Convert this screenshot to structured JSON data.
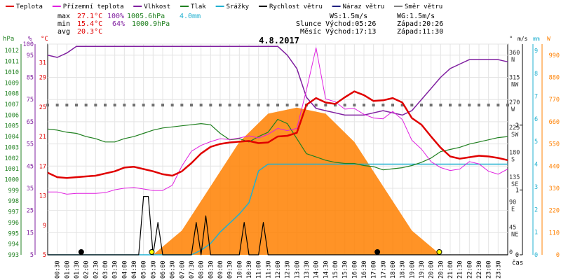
{
  "legend": [
    {
      "label": "Teplota",
      "color": "#e00000"
    },
    {
      "label": "Přízemní teplota",
      "color": "#e020e0"
    },
    {
      "label": "Vlhkost",
      "color": "#8020a0"
    },
    {
      "label": "Tlak",
      "color": "#208020"
    },
    {
      "label": "Srážky",
      "color": "#20b0d0"
    },
    {
      "label": "Rychlost větru",
      "color": "#000000"
    },
    {
      "label": "Náraz větru",
      "color": "#202080"
    },
    {
      "label": "Směr větru",
      "color": "#808080"
    }
  ],
  "stats": {
    "max": {
      "label": "max",
      "temp": "27.1°C",
      "hum": "100%",
      "press": "1005.6hPa",
      "rain": "4.0mm"
    },
    "min": {
      "label": "min",
      "temp": "15.4°C",
      "hum": "64%",
      "press": "1000.9hPa"
    },
    "avg": {
      "label": "avg",
      "temp": "20.3°C"
    }
  },
  "wind_info": {
    "ws": "WS:1.5m/s",
    "wg": "WG:1.5m/s",
    "sun": "Slunce Východ:05:26",
    "sun_set": "Západ:20:26",
    "moon": "Měsíc  Východ:17:13",
    "moon_set": "Západ:11:30"
  },
  "date": "4.8.2017",
  "axis_titles": {
    "hpa": "hPa",
    "pct": "%",
    "degc": "°C",
    "deg": "°",
    "ms": "m/s",
    "mm": "mm",
    "w": "W",
    "time": "čas"
  },
  "colors": {
    "temp": "#e00000",
    "ground": "#e020e0",
    "hum": "#8020a0",
    "press": "#208020",
    "rain": "#20b0d0",
    "wind": "#000000",
    "dir": "#707070",
    "solar": "#ff8000",
    "solar_line": "#e08020"
  },
  "chart_data": {
    "type": "line",
    "title": "4.8.2017",
    "x_ticks": [
      "00:30",
      "01:00",
      "01:30",
      "02:00",
      "02:30",
      "03:00",
      "03:30",
      "04:00",
      "04:30",
      "05:00",
      "05:30",
      "06:00",
      "06:30",
      "07:00",
      "07:30",
      "08:00",
      "08:30",
      "09:00",
      "09:30",
      "10:00",
      "10:30",
      "11:00",
      "11:30",
      "12:00",
      "12:30",
      "13:00",
      "13:30",
      "14:00",
      "14:30",
      "15:00",
      "15:30",
      "16:00",
      "16:30",
      "17:00",
      "17:30",
      "18:00",
      "18:30",
      "19:00",
      "19:30",
      "20:00",
      "20:30",
      "21:00",
      "21:30",
      "22:00",
      "22:30",
      "23:00",
      "23:30"
    ],
    "xlabel": "čas",
    "axes": {
      "hpa": {
        "ticks": [
          993,
          994,
          995,
          996,
          997,
          998,
          999,
          1000,
          1001,
          1002,
          1003,
          1004,
          1005,
          1006,
          1007,
          1008,
          1009,
          1010,
          1011,
          1012
        ],
        "range": [
          993,
          1012.6
        ]
      },
      "pct": {
        "ticks": [
          5,
          15,
          25,
          35,
          45,
          55,
          65,
          75,
          85,
          95,
          100
        ],
        "range": [
          5,
          100
        ]
      },
      "degc": {
        "ticks": [
          5,
          9,
          13,
          17,
          21,
          25,
          29,
          31
        ],
        "range": [
          5,
          33.5
        ]
      },
      "dir": {
        "ticks": [
          "0",
          "45 NE",
          "90 E",
          "135 SE",
          "180 S",
          "225 SW",
          "270 W",
          "315 NW",
          "360 N"
        ],
        "range": [
          0,
          380
        ]
      },
      "ms": {
        "ticks": [
          0,
          1,
          2
        ],
        "range": [
          0,
          3.25
        ]
      },
      "mm": {
        "ticks": [
          0,
          1,
          2,
          3,
          4,
          5,
          6,
          7,
          8,
          9
        ],
        "range": [
          0,
          9.3
        ]
      },
      "w": {
        "ticks": [
          0,
          110,
          220,
          330,
          440,
          550,
          660,
          770,
          880,
          990
        ],
        "range": [
          0,
          1045
        ]
      }
    },
    "series": [
      {
        "name": "Teplota",
        "unit": "°C",
        "x": [
          0,
          0.5,
          1,
          1.5,
          2,
          2.5,
          3,
          3.5,
          4,
          4.5,
          5,
          5.5,
          6,
          6.5,
          7,
          7.5,
          8,
          8.5,
          9,
          9.5,
          10,
          10.5,
          11,
          11.5,
          12,
          12.5,
          13,
          13.5,
          14,
          14.5,
          15,
          15.5,
          16,
          16.5,
          17,
          17.5,
          18,
          18.5,
          19,
          19.5,
          20,
          20.5,
          21,
          21.5,
          22,
          22.5,
          23,
          23.5,
          24
        ],
        "values": [
          16.1,
          15.5,
          15.4,
          15.5,
          15.6,
          15.7,
          16.0,
          16.3,
          16.8,
          16.9,
          16.6,
          16.3,
          15.9,
          15.7,
          16.3,
          17.4,
          18.7,
          19.6,
          20.0,
          20.2,
          20.3,
          20.4,
          20.1,
          20.2,
          21.0,
          21.1,
          21.5,
          25.3,
          26.2,
          25.6,
          25.4,
          26.3,
          27.1,
          26.6,
          25.8,
          25.9,
          26.2,
          25.6,
          23.5,
          22.6,
          21.0,
          19.5,
          18.3,
          18.0,
          18.2,
          18.4,
          18.3,
          18.1,
          17.8
        ]
      },
      {
        "name": "Přízemní teplota",
        "unit": "°C",
        "x": [
          0,
          0.5,
          1,
          1.5,
          2,
          2.5,
          3,
          3.5,
          4,
          4.5,
          5,
          5.5,
          6,
          6.5,
          7,
          7.5,
          8,
          8.5,
          9,
          9.5,
          10,
          10.5,
          11,
          11.5,
          12,
          12.5,
          13,
          13.5,
          14,
          14.5,
          15,
          15.5,
          16,
          16.5,
          17,
          17.5,
          18,
          18.5,
          19,
          19.5,
          20,
          20.5,
          21,
          21.5,
          22,
          22.5,
          23,
          23.5,
          24
        ],
        "values": [
          13.5,
          13.5,
          13.2,
          13.3,
          13.3,
          13.3,
          13.4,
          13.8,
          14.0,
          14.1,
          13.9,
          13.7,
          13.7,
          14.4,
          17.0,
          19.0,
          19.8,
          20.3,
          20.7,
          20.6,
          20.8,
          21.1,
          20.8,
          21.3,
          22.1,
          21.8,
          22.1,
          27.3,
          33.0,
          26.1,
          25.7,
          24.7,
          24.8,
          24.0,
          23.5,
          23.4,
          24.4,
          23.3,
          20.5,
          19.3,
          17.6,
          16.8,
          16.4,
          16.6,
          17.6,
          17.3,
          16.3,
          15.9,
          16.6
        ]
      },
      {
        "name": "Vlhkost",
        "unit": "%",
        "x": [
          0,
          0.5,
          1,
          1.5,
          2,
          2.5,
          3,
          3.5,
          4,
          4.5,
          5,
          5.5,
          6,
          6.5,
          7,
          7.5,
          8,
          8.5,
          9,
          9.5,
          10,
          10.5,
          11,
          11.5,
          12,
          12.5,
          13,
          13.5,
          14,
          14.5,
          15,
          15.5,
          16,
          16.5,
          17,
          17.5,
          18,
          18.5,
          19,
          19.5,
          20,
          20.5,
          21,
          21.5,
          22,
          22.5,
          23,
          23.5,
          24
        ],
        "values": [
          95,
          94,
          96,
          99,
          99,
          99,
          99,
          99,
          99,
          99,
          99,
          99,
          99,
          99,
          99,
          99,
          99,
          99,
          99,
          99,
          99,
          99,
          99,
          99,
          99,
          95,
          89,
          76,
          71,
          70,
          69,
          68,
          68,
          68,
          69,
          70,
          69,
          68,
          70,
          75,
          80,
          85,
          89,
          91,
          93,
          93,
          93,
          93,
          92
        ]
      },
      {
        "name": "Tlak",
        "unit": "hPa",
        "x": [
          0,
          0.5,
          1,
          1.5,
          2,
          2.5,
          3,
          3.5,
          4,
          4.5,
          5,
          5.5,
          6,
          6.5,
          7,
          7.5,
          8,
          8.5,
          9,
          9.5,
          10,
          10.5,
          11,
          11.5,
          12,
          12.5,
          13,
          13.5,
          14,
          14.5,
          15,
          15.5,
          16,
          16.5,
          17,
          17.5,
          18,
          18.5,
          19,
          19.5,
          20,
          20.5,
          21,
          21.5,
          22,
          22.5,
          23,
          23.5,
          24
        ],
        "values": [
          1004.7,
          1004.6,
          1004.4,
          1004.3,
          1004.0,
          1003.8,
          1003.5,
          1003.5,
          1003.8,
          1004.0,
          1004.3,
          1004.6,
          1004.8,
          1004.9,
          1005.0,
          1005.1,
          1005.2,
          1005.1,
          1004.3,
          1003.7,
          1003.8,
          1003.5,
          1004.0,
          1004.4,
          1005.6,
          1005.2,
          1003.8,
          1002.4,
          1002.1,
          1001.8,
          1001.6,
          1001.5,
          1001.5,
          1001.3,
          1001.2,
          1000.9,
          1001.0,
          1001.1,
          1001.3,
          1001.6,
          1002.0,
          1002.6,
          1002.8,
          1003.0,
          1003.3,
          1003.5,
          1003.7,
          1003.9,
          1004.0
        ]
      },
      {
        "name": "Srážky",
        "unit": "mm",
        "x": [
          0,
          5.5,
          6,
          6.5,
          7,
          7.5,
          8,
          8.5,
          9,
          9.5,
          10,
          10.5,
          11,
          11.5,
          12,
          12.5,
          13,
          16,
          18,
          20,
          22,
          24
        ],
        "values": [
          0,
          0,
          0,
          0,
          0,
          0,
          0.2,
          0.5,
          1.0,
          1.4,
          1.8,
          2.3,
          3.7,
          4.0,
          4.0,
          4.0,
          4.0,
          4.0,
          4.0,
          4.0,
          4.0,
          4.0
        ]
      },
      {
        "name": "Rychlost větru",
        "unit": "m/s",
        "x": [
          0,
          0.25,
          0.5,
          0.75,
          1,
          1.25,
          1.5,
          1.75,
          2,
          2.25,
          2.5,
          2.75,
          3,
          3.25,
          3.5,
          3.75,
          4,
          4.25,
          4.5,
          4.75,
          5,
          5.25,
          5.5,
          5.75,
          6,
          6.25,
          6.5,
          6.75,
          7,
          7.25,
          7.5,
          7.75,
          8,
          8.25,
          8.5,
          8.75,
          9,
          9.25,
          9.5,
          9.75,
          10,
          10.25,
          10.5,
          10.75,
          11,
          11.25,
          11.5,
          11.75,
          12,
          12.25,
          12.5,
          12.75,
          13,
          13.25,
          13.5,
          13.75,
          14,
          14.25,
          14.5,
          14.75,
          15,
          15.25,
          15.5,
          15.75,
          16,
          16.25,
          16.5,
          16.75,
          17,
          17.25,
          17.5,
          17.75,
          18,
          18.25,
          18.5,
          18.75,
          19,
          19.25,
          19.5,
          19.75,
          20,
          20.25,
          20.5,
          20.75,
          21,
          21.25,
          21.5,
          21.75,
          22,
          22.25,
          22.5,
          22.75,
          23,
          23.25,
          23.5,
          23.75,
          24
        ],
        "values": [
          0,
          0,
          0,
          0,
          0,
          0,
          0,
          0,
          0,
          0,
          0,
          0,
          0,
          0,
          0,
          0,
          0,
          0,
          0,
          0,
          0.9,
          0.9,
          0,
          0.5,
          0,
          0,
          0,
          0,
          0,
          0,
          0,
          0.5,
          0,
          0.6,
          0,
          0,
          0,
          0,
          0,
          0,
          0,
          0.5,
          0,
          0,
          0,
          0.5,
          0,
          0,
          0,
          0,
          0,
          0,
          0,
          0,
          0,
          0,
          0,
          0,
          0,
          0,
          0,
          0,
          0,
          0,
          0,
          0,
          0,
          0,
          0,
          0,
          0,
          0,
          0,
          0,
          0,
          0,
          0,
          0,
          0,
          0,
          0,
          0,
          0,
          0,
          0,
          0,
          0,
          0,
          0,
          0,
          0,
          0,
          0,
          0,
          0,
          0,
          0
        ]
      },
      {
        "name": "Směr větru",
        "unit": "°",
        "x": [
          0,
          0.5,
          1,
          1.5,
          2,
          2.5,
          3,
          3.5,
          4,
          4.5,
          5,
          5.5,
          6,
          6.5,
          7,
          7.5,
          8,
          8.5,
          9,
          9.5,
          10,
          10.5,
          11,
          11.5,
          12,
          12.5,
          13,
          13.5,
          14,
          14.5,
          15,
          15.5,
          16,
          16.5,
          17,
          17.5,
          18,
          18.5,
          19,
          19.5,
          20,
          20.5,
          21,
          21.5,
          22,
          22.5,
          23,
          23.5,
          24
        ],
        "values": [
          270,
          270,
          270,
          270,
          270,
          270,
          270,
          270,
          270,
          270,
          270,
          270,
          270,
          270,
          270,
          270,
          270,
          270,
          270,
          270,
          270,
          270,
          270,
          270,
          270,
          270,
          270,
          270,
          270,
          270,
          270,
          270,
          270,
          270,
          270,
          270,
          270,
          270,
          270,
          270,
          270,
          270,
          270,
          270,
          270,
          270,
          270,
          270,
          270
        ]
      },
      {
        "name": "Solar",
        "unit": "W",
        "x": [
          5.5,
          7,
          8.5,
          10,
          11.5,
          13,
          14.5,
          16,
          17.5,
          19,
          20.5
        ],
        "values": [
          0,
          120,
          340,
          560,
          700,
          730,
          700,
          560,
          340,
          120,
          0
        ]
      }
    ]
  }
}
